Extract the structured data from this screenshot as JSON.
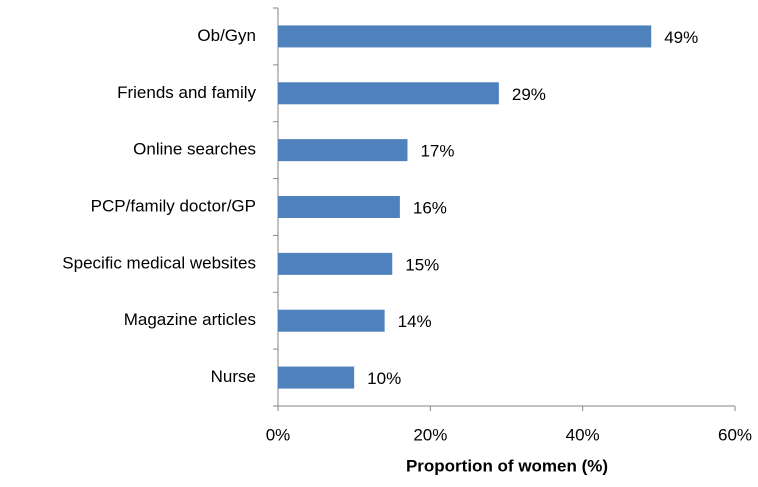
{
  "chart_data": {
    "type": "bar",
    "orientation": "horizontal",
    "x_label": "Proportion of women (%)",
    "categories": [
      "Ob/Gyn",
      "Friends and family",
      "Online searches",
      "PCP/family doctor/GP",
      "Specific medical websites",
      "Magazine articles",
      "Nurse"
    ],
    "values": [
      49,
      29,
      17,
      16,
      15,
      14,
      10
    ],
    "value_labels": [
      "49%",
      "29%",
      "17%",
      "16%",
      "15%",
      "14%",
      "10%"
    ],
    "color": "#4f81bd",
    "xlim": [
      0,
      60
    ],
    "xticks": [
      {
        "value": 0,
        "label": "0%"
      },
      {
        "value": 20,
        "label": "20%"
      },
      {
        "value": 40,
        "label": "40%"
      },
      {
        "value": 60,
        "label": "60%"
      }
    ],
    "grid": false
  }
}
